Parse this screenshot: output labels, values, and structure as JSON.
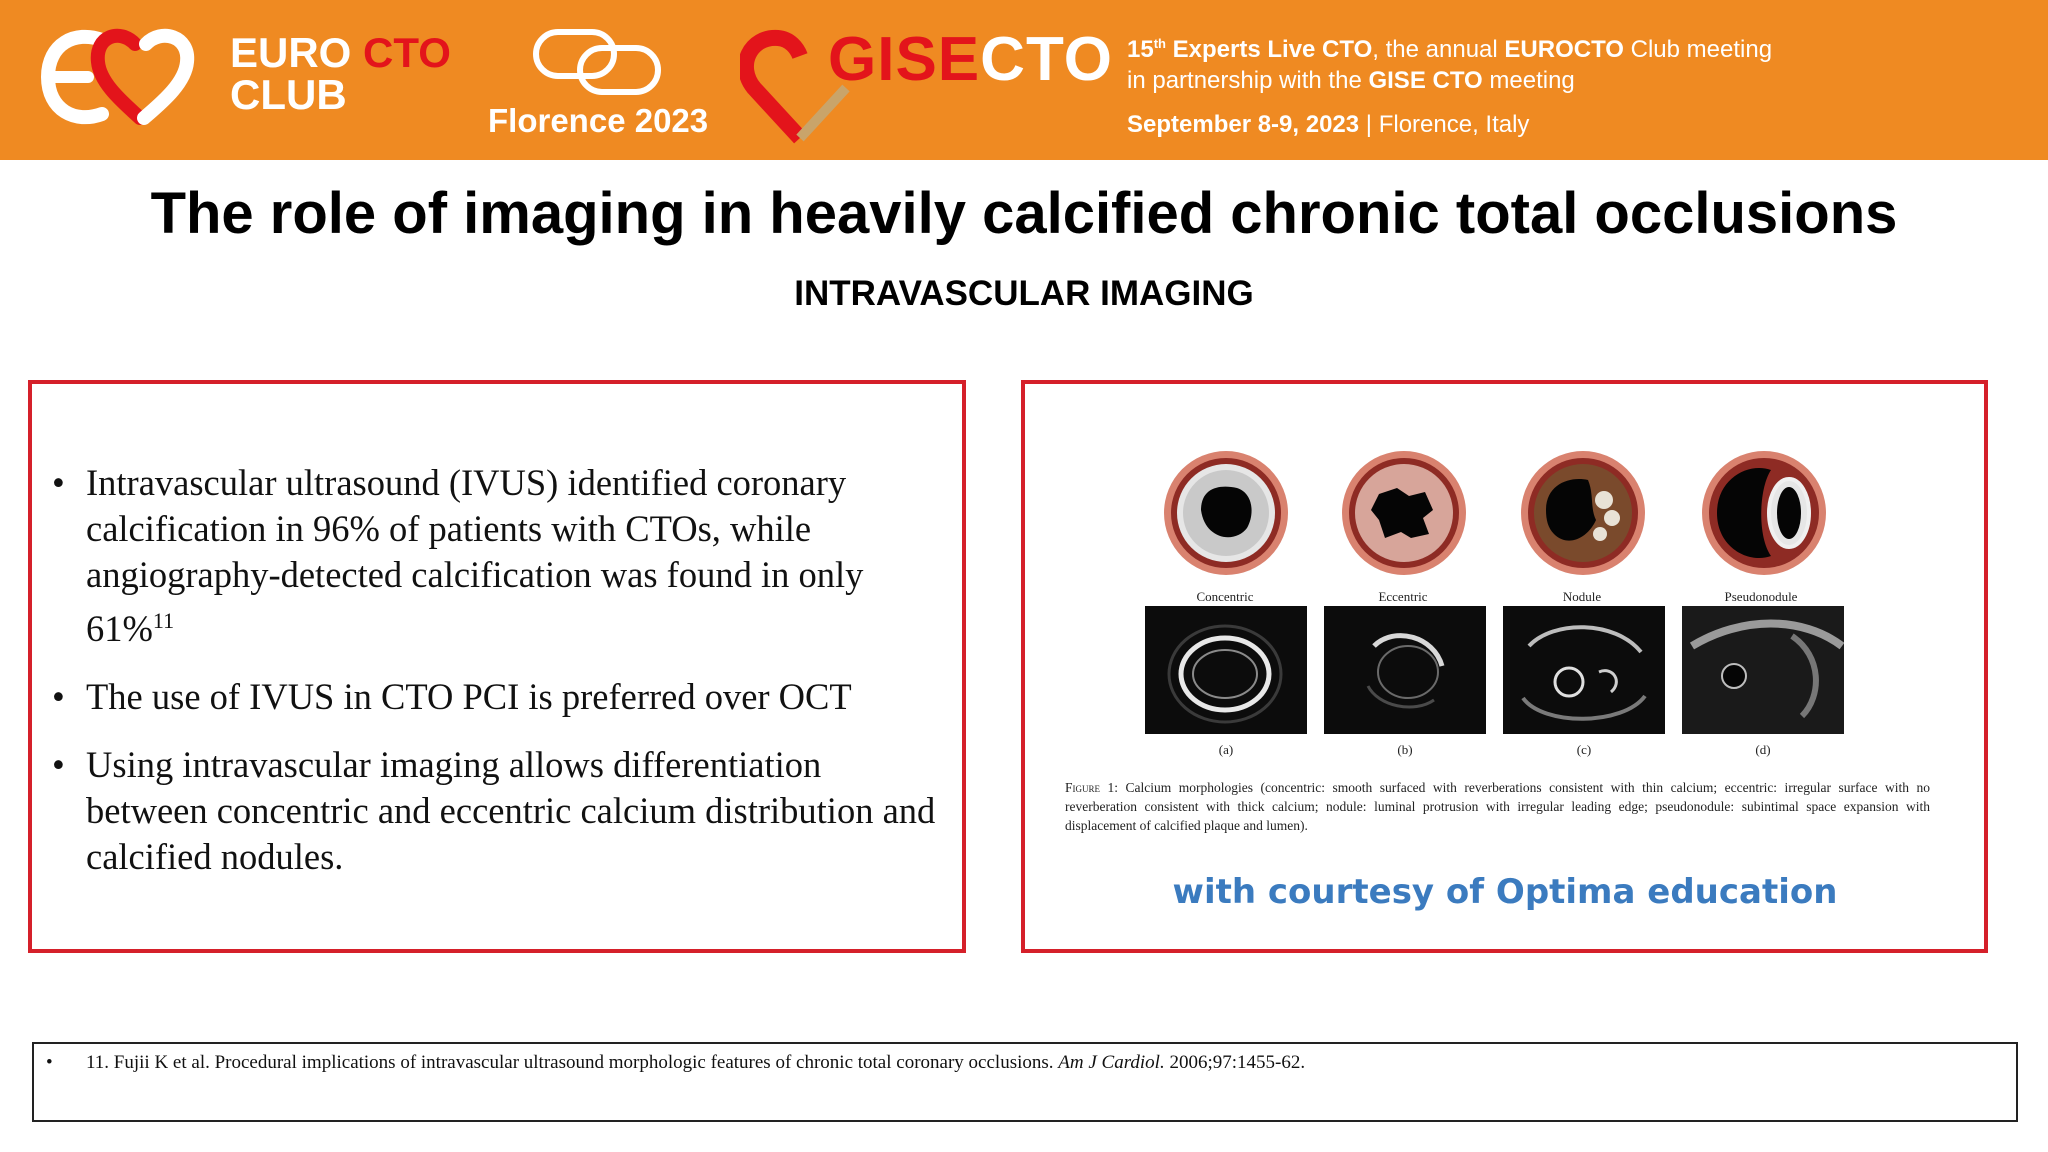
{
  "banner": {
    "euro_word": "EURO",
    "cto_word": "CTO",
    "club_word": "CLUB",
    "florence": "Florence 2023",
    "gise_word": "GISE",
    "gise_cto_word": "CTO",
    "info_line1_pre": "15",
    "info_line1_sup": "th",
    "info_line1_bold": " Experts Live CTO",
    "info_line1_mid": ", the annual ",
    "info_line1_bold2": "EUROCTO",
    "info_line1_post": " Club meeting",
    "info_line2_pre": "in partnership with the ",
    "info_line2_bold": "GISE CTO",
    "info_line2_post": " meeting",
    "info_line3_bold": "September 8-9, 2023",
    "info_line3_post": " | Florence, Italy",
    "colors": {
      "orange": "#ef8a22",
      "red": "#e3141b"
    }
  },
  "slide": {
    "title": "The role of imaging in heavily calcified chronic total occlusions",
    "subtitle": "INTRAVASCULAR IMAGING"
  },
  "bullets": [
    {
      "text": "Intravascular ultrasound (IVUS) identified coronary calcification in 96% of patients with CTOs, while angiography-detected calcification was found in only 61%",
      "sup": "11"
    },
    {
      "text": "The use of IVUS in CTO PCI is preferred over OCT",
      "sup": ""
    },
    {
      "text": "Using intravascular imaging allows differentiation between concentric and eccentric calcium distribution and calcified nodules.",
      "sup": ""
    }
  ],
  "figure": {
    "labels": [
      "Concentric",
      "Eccentric",
      "Nodule",
      "Pseudonodule"
    ],
    "letters": [
      "(a)",
      "(b)",
      "(c)",
      "(d)"
    ],
    "caption_head": "Figure 1:",
    "caption": " Calcium morphologies (concentric: smooth surfaced with reverberations consistent with thin calcium; eccentric: irregular surface with no reverberation consistent with thick calcium; nodule: luminal protrusion with irregular leading edge; pseudonodule: subintimal space expansion with displacement of calcified plaque and lumen).",
    "courtesy": "with courtesy of Optima education",
    "courtesy_color": "#3b7bbf"
  },
  "reference": {
    "bullet": "•",
    "text_pre": "11. Fujii K et al. Procedural implications of intravascular ultrasound morphologic features of chronic total coronary occlusions. ",
    "journal": "Am J Cardiol.",
    "text_post": " 2006;97:1455-62."
  }
}
